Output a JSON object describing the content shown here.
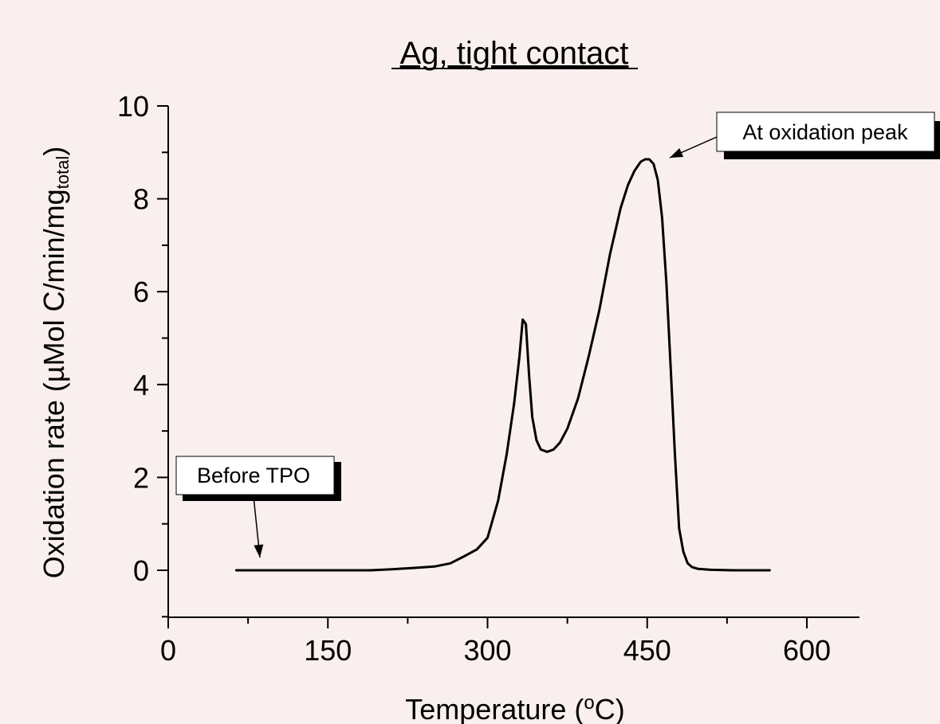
{
  "chart_data": {
    "type": "line",
    "title": "Ag, tight contact",
    "xlabel": "Temperature (",
    "xlabel_sup": "o",
    "xlabel_end": "C)",
    "ylabel": "Oxidation rate (µMol C/min/mg",
    "ylabel_sub": "total",
    "ylabel_end": ")",
    "xlim": [
      0,
      650
    ],
    "ylim": [
      -1,
      10
    ],
    "x_ticks": [
      0,
      150,
      300,
      450,
      600
    ],
    "x_tick_labels": [
      "0",
      "150",
      "300",
      "450",
      "600"
    ],
    "x_minor_ticks": [
      75,
      225,
      375,
      525
    ],
    "y_ticks": [
      0,
      2,
      4,
      6,
      8,
      10
    ],
    "y_tick_labels": [
      "0",
      "2",
      "4",
      "6",
      "8",
      "10"
    ],
    "y_minor_ticks": [
      -1,
      1,
      3,
      5,
      7,
      9
    ],
    "grid": false,
    "legend": "none",
    "series": [
      {
        "x": [
          64,
          100,
          150,
          190,
          210,
          230,
          250,
          265,
          278,
          290,
          300,
          310,
          318,
          325,
          330,
          333,
          336,
          339,
          342,
          346,
          350,
          356,
          362,
          368,
          375,
          385,
          395,
          405,
          415,
          425,
          432,
          438,
          444,
          448,
          452,
          456,
          460,
          464,
          468,
          472,
          476,
          480,
          484,
          488,
          492,
          498,
          510,
          530,
          565
        ],
        "y": [
          0,
          0,
          0,
          0,
          0.02,
          0.05,
          0.08,
          0.15,
          0.3,
          0.45,
          0.7,
          1.5,
          2.5,
          3.6,
          4.6,
          5.4,
          5.3,
          4.2,
          3.3,
          2.8,
          2.6,
          2.55,
          2.6,
          2.75,
          3.05,
          3.7,
          4.6,
          5.6,
          6.8,
          7.8,
          8.3,
          8.6,
          8.8,
          8.85,
          8.85,
          8.75,
          8.4,
          7.6,
          6.2,
          4.4,
          2.5,
          0.9,
          0.4,
          0.15,
          0.07,
          0.03,
          0.01,
          0,
          0
        ]
      }
    ],
    "annotations": [
      {
        "text": "At oxidation peak",
        "point": [
          455,
          8.85
        ]
      },
      {
        "text": "Before TPO",
        "point": [
          85,
          0
        ]
      }
    ]
  }
}
